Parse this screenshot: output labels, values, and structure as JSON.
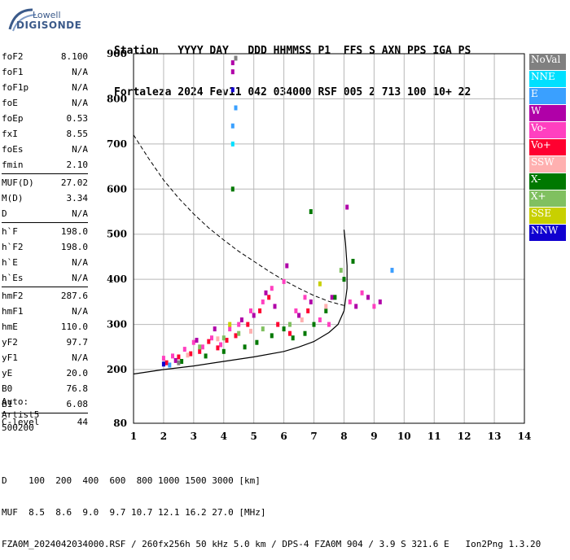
{
  "logo": {
    "line1": "Lowell",
    "line2": "DIGISONDE"
  },
  "header": {
    "columns_line": "Station   YYYY DAY   DDD HHMMSS P1  FFS S AXN PPS IGA PS",
    "values_line": "Fortaleza 2024 Fev11 042 034000 RSF 005 2 713 100 10+ 22"
  },
  "params": {
    "group1": [
      {
        "name": "foF2",
        "value": "8.100"
      },
      {
        "name": "foF1",
        "value": "N/A"
      },
      {
        "name": "foF1p",
        "value": "N/A"
      },
      {
        "name": "foE",
        "value": "N/A"
      },
      {
        "name": "foEp",
        "value": "0.53"
      },
      {
        "name": "fxI",
        "value": "8.55"
      },
      {
        "name": "foEs",
        "value": "N/A"
      },
      {
        "name": "fmin",
        "value": "2.10"
      }
    ],
    "group2": [
      {
        "name": "MUF(D)",
        "value": "27.02"
      },
      {
        "name": "M(D)",
        "value": "3.34"
      },
      {
        "name": "D",
        "value": "N/A"
      }
    ],
    "group3": [
      {
        "name": "h`F",
        "value": "198.0"
      },
      {
        "name": "h`F2",
        "value": "198.0"
      },
      {
        "name": "h`E",
        "value": "N/A"
      },
      {
        "name": "h`Es",
        "value": "N/A"
      }
    ],
    "group4": [
      {
        "name": "hmF2",
        "value": "287.6"
      },
      {
        "name": "hmF1",
        "value": "N/A"
      },
      {
        "name": "hmE",
        "value": "110.0"
      },
      {
        "name": "yF2",
        "value": "97.7"
      },
      {
        "name": "yF1",
        "value": "N/A"
      },
      {
        "name": "yE",
        "value": "20.0"
      },
      {
        "name": "B0",
        "value": "76.8"
      },
      {
        "name": "B1",
        "value": "6.08"
      }
    ],
    "group5": [
      {
        "name": "C-level",
        "value": "44"
      }
    ]
  },
  "auto": {
    "line1": "Auto:",
    "line2": "Artist5",
    "line3": "500200"
  },
  "footer": {
    "d_line": "D    100  200  400  600  800 1000 1500 3000 [km]",
    "muf_line": "MUF  8.5  8.6  9.0  9.7 10.7 12.1 16.2 27.0 [MHz]",
    "info_line": "FZA0M_2024042034000.RSF / 260fx256h 50 kHz 5.0 km / DPS-4 FZA0M 904 / 3.9 S 321.6 E   Ion2Png 1.3.20"
  },
  "legend": [
    {
      "label": "NoVal",
      "color": "#808080",
      "text_color": "#ffffff"
    },
    {
      "label": "NNE",
      "color": "#00e0ff",
      "text_color": "#ffffff"
    },
    {
      "label": "E",
      "color": "#3aa0ff",
      "text_color": "#ffffff"
    },
    {
      "label": "W",
      "color": "#b000a8",
      "text_color": "#ffffff"
    },
    {
      "label": "Vo-",
      "color": "#ff40c0",
      "text_color": "#ffffff"
    },
    {
      "label": "Vo+",
      "color": "#ff0030",
      "text_color": "#ffffff"
    },
    {
      "label": "SSW",
      "color": "#ffb0b0",
      "text_color": "#ffffff"
    },
    {
      "label": "X-",
      "color": "#007800",
      "text_color": "#ffffff"
    },
    {
      "label": "X+",
      "color": "#80c060",
      "text_color": "#ffffff"
    },
    {
      "label": "SSE",
      "color": "#c8d000",
      "text_color": "#ffffff"
    },
    {
      "label": "NNW",
      "color": "#1000d0",
      "text_color": "#ffffff"
    }
  ],
  "chart_data": {
    "type": "scatter",
    "xlabel": "",
    "ylabel": "",
    "xlim": [
      1,
      14
    ],
    "ylim": [
      80,
      900
    ],
    "x_ticks": [
      1,
      2,
      3,
      4,
      5,
      6,
      7,
      8,
      9,
      10,
      11,
      12,
      13,
      14
    ],
    "y_ticks": [
      80,
      200,
      300,
      400,
      500,
      600,
      700,
      800,
      900
    ],
    "grid": true,
    "dashed_curve": {
      "x": [
        1.0,
        1.5,
        2.0,
        2.5,
        3.0,
        3.5,
        4.0,
        4.5,
        5.0,
        5.5,
        6.0,
        6.5,
        7.0,
        7.5,
        8.0
      ],
      "y": [
        720,
        668,
        620,
        580,
        545,
        514,
        487,
        462,
        440,
        418,
        398,
        380,
        364,
        351,
        342
      ]
    },
    "solid_curve": {
      "x": [
        1.0,
        2.0,
        3.0,
        4.0,
        5.0,
        6.0,
        6.5,
        7.0,
        7.5,
        7.8,
        8.0,
        8.1,
        8.1,
        8.05,
        8.0
      ],
      "y": [
        190,
        200,
        208,
        218,
        228,
        240,
        250,
        262,
        282,
        300,
        330,
        380,
        430,
        480,
        510
      ]
    },
    "series": [
      {
        "name": "Vo-",
        "color": "#ff40c0",
        "points": [
          [
            2.0,
            225
          ],
          [
            2.3,
            230
          ],
          [
            2.7,
            245
          ],
          [
            3.0,
            260
          ],
          [
            3.3,
            250
          ],
          [
            3.6,
            270
          ],
          [
            3.9,
            255
          ],
          [
            4.2,
            290
          ],
          [
            4.5,
            300
          ],
          [
            4.9,
            330
          ],
          [
            5.3,
            350
          ],
          [
            5.6,
            380
          ],
          [
            6.0,
            395
          ],
          [
            6.4,
            330
          ],
          [
            6.7,
            360
          ],
          [
            7.2,
            310
          ],
          [
            7.5,
            300
          ],
          [
            8.2,
            350
          ],
          [
            8.6,
            370
          ],
          [
            9.0,
            340
          ],
          [
            9.6,
            420
          ]
        ]
      },
      {
        "name": "Vo+",
        "color": "#ff0030",
        "points": [
          [
            2.1,
            215
          ],
          [
            2.5,
            228
          ],
          [
            2.9,
            235
          ],
          [
            3.2,
            240
          ],
          [
            3.5,
            262
          ],
          [
            3.8,
            248
          ],
          [
            4.1,
            265
          ],
          [
            4.4,
            275
          ],
          [
            4.8,
            300
          ],
          [
            5.2,
            330
          ],
          [
            5.5,
            360
          ],
          [
            5.8,
            300
          ],
          [
            6.2,
            280
          ],
          [
            6.8,
            330
          ]
        ]
      },
      {
        "name": "W",
        "color": "#b000a8",
        "points": [
          [
            2.4,
            220
          ],
          [
            3.1,
            265
          ],
          [
            3.7,
            290
          ],
          [
            4.3,
            880
          ],
          [
            4.3,
            860
          ],
          [
            4.6,
            310
          ],
          [
            5.0,
            320
          ],
          [
            5.4,
            370
          ],
          [
            5.7,
            340
          ],
          [
            6.1,
            430
          ],
          [
            6.5,
            320
          ],
          [
            6.9,
            350
          ],
          [
            7.6,
            360
          ],
          [
            8.1,
            560
          ],
          [
            8.4,
            340
          ],
          [
            8.8,
            360
          ],
          [
            9.2,
            350
          ]
        ]
      },
      {
        "name": "X-",
        "color": "#007800",
        "points": [
          [
            2.6,
            218
          ],
          [
            3.4,
            230
          ],
          [
            4.0,
            240
          ],
          [
            4.7,
            250
          ],
          [
            5.1,
            260
          ],
          [
            5.6,
            275
          ],
          [
            6.0,
            290
          ],
          [
            6.3,
            270
          ],
          [
            6.7,
            280
          ],
          [
            7.0,
            300
          ],
          [
            7.4,
            330
          ],
          [
            7.7,
            360
          ],
          [
            8.0,
            400
          ],
          [
            8.3,
            440
          ],
          [
            6.9,
            550
          ],
          [
            4.3,
            600
          ]
        ]
      },
      {
        "name": "X+",
        "color": "#80c060",
        "points": [
          [
            3.2,
            250
          ],
          [
            4.0,
            270
          ],
          [
            4.5,
            280
          ],
          [
            5.3,
            290
          ],
          [
            6.2,
            300
          ],
          [
            7.9,
            420
          ]
        ]
      },
      {
        "name": "SSW",
        "color": "#ffb0b0",
        "points": [
          [
            2.8,
            232
          ],
          [
            3.8,
            268
          ],
          [
            4.9,
            285
          ],
          [
            6.6,
            310
          ],
          [
            7.4,
            340
          ]
        ]
      },
      {
        "name": "E",
        "color": "#3aa0ff",
        "points": [
          [
            4.4,
            780
          ],
          [
            4.3,
            740
          ],
          [
            9.6,
            420
          ],
          [
            2.2,
            210
          ]
        ]
      },
      {
        "name": "NNE",
        "color": "#00e0ff",
        "points": [
          [
            4.3,
            700
          ]
        ]
      },
      {
        "name": "NNW",
        "color": "#1000d0",
        "points": [
          [
            2.0,
            212
          ],
          [
            4.3,
            820
          ]
        ]
      },
      {
        "name": "SSE",
        "color": "#c8d000",
        "points": [
          [
            4.2,
            300
          ],
          [
            7.2,
            390
          ]
        ]
      },
      {
        "name": "NoVal",
        "color": "#808080",
        "points": [
          [
            4.4,
            890
          ],
          [
            2.5,
            215
          ]
        ]
      }
    ]
  }
}
